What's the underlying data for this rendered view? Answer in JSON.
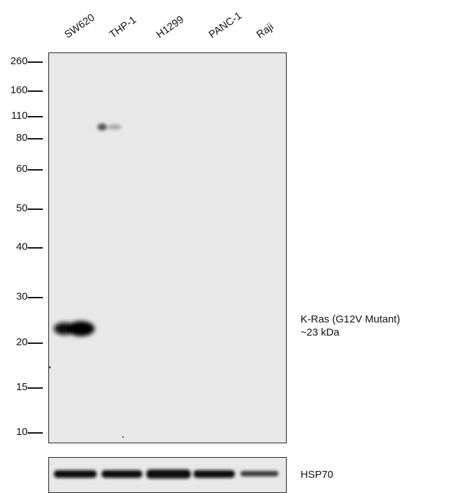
{
  "lanes": [
    {
      "label": "SW620"
    },
    {
      "label": "THP-1"
    },
    {
      "label": "H1299"
    },
    {
      "label": "PANC-1"
    },
    {
      "label": "Raji"
    }
  ],
  "markers": [
    {
      "label": "260"
    },
    {
      "label": "160"
    },
    {
      "label": "110"
    },
    {
      "label": "80"
    },
    {
      "label": "60"
    },
    {
      "label": "50"
    },
    {
      "label": "40"
    },
    {
      "label": "30"
    },
    {
      "label": "20"
    },
    {
      "label": "15"
    },
    {
      "label": "10"
    }
  ],
  "main_target": {
    "line1": "K-Ras (G12V Mutant)",
    "line2": "~23 kDa"
  },
  "loading_control": {
    "label": "HSP70"
  }
}
